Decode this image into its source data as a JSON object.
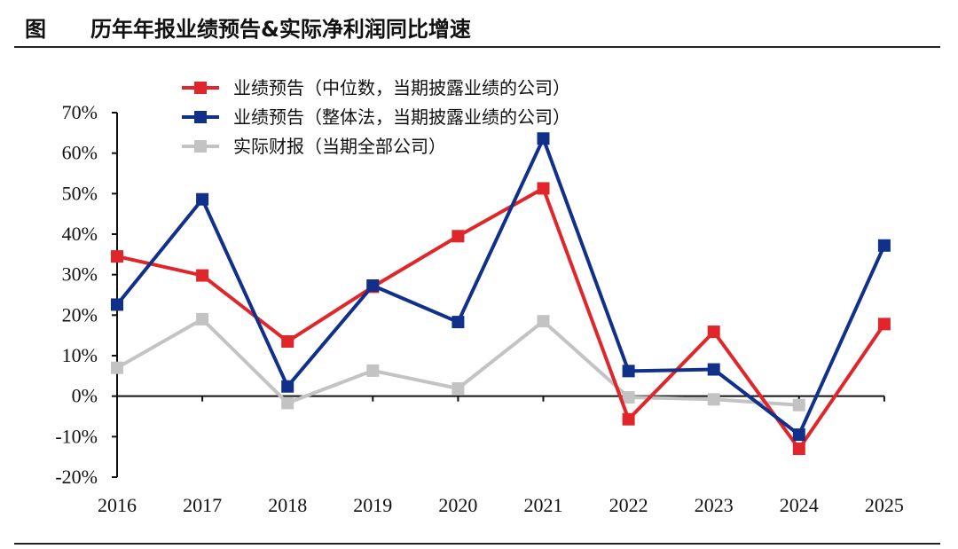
{
  "header": {
    "label": "图",
    "title": "历年年报业绩预告&实际净利润同比增速"
  },
  "chart_data": {
    "type": "line",
    "title": "历年年报业绩预告&实际净利润同比增速",
    "xlabel": "",
    "ylabel": "",
    "categories": [
      "2016",
      "2017",
      "2018",
      "2019",
      "2020",
      "2021",
      "2022",
      "2023",
      "2024",
      "2025"
    ],
    "ylim": [
      -20,
      70
    ],
    "yticks": [
      70,
      60,
      50,
      40,
      30,
      20,
      10,
      0,
      -10,
      -20
    ],
    "ytick_labels": [
      "70%",
      "60%",
      "50%",
      "40%",
      "30%",
      "20%",
      "10%",
      "0%",
      "-10%",
      "-20%"
    ],
    "grid": false,
    "legend_position": "top-center",
    "series": [
      {
        "name": "业绩预告（中位数，当期披露业绩的公司）",
        "color": "#e0262a",
        "values": [
          34.5,
          29.8,
          13.5,
          27.0,
          39.5,
          51.3,
          -5.7,
          15.9,
          -13.0,
          17.8
        ]
      },
      {
        "name": "业绩预告（整体法，当期披露业绩的公司）",
        "color": "#11308a",
        "values": [
          22.6,
          48.6,
          2.4,
          27.3,
          18.3,
          63.6,
          6.2,
          6.6,
          -9.5,
          37.2
        ]
      },
      {
        "name": "实际财报（当期全部公司）",
        "color": "#c3c3c3",
        "values": [
          7.0,
          19.0,
          -1.7,
          6.3,
          1.9,
          18.5,
          -0.3,
          -0.8,
          -2.2,
          null
        ]
      }
    ]
  }
}
